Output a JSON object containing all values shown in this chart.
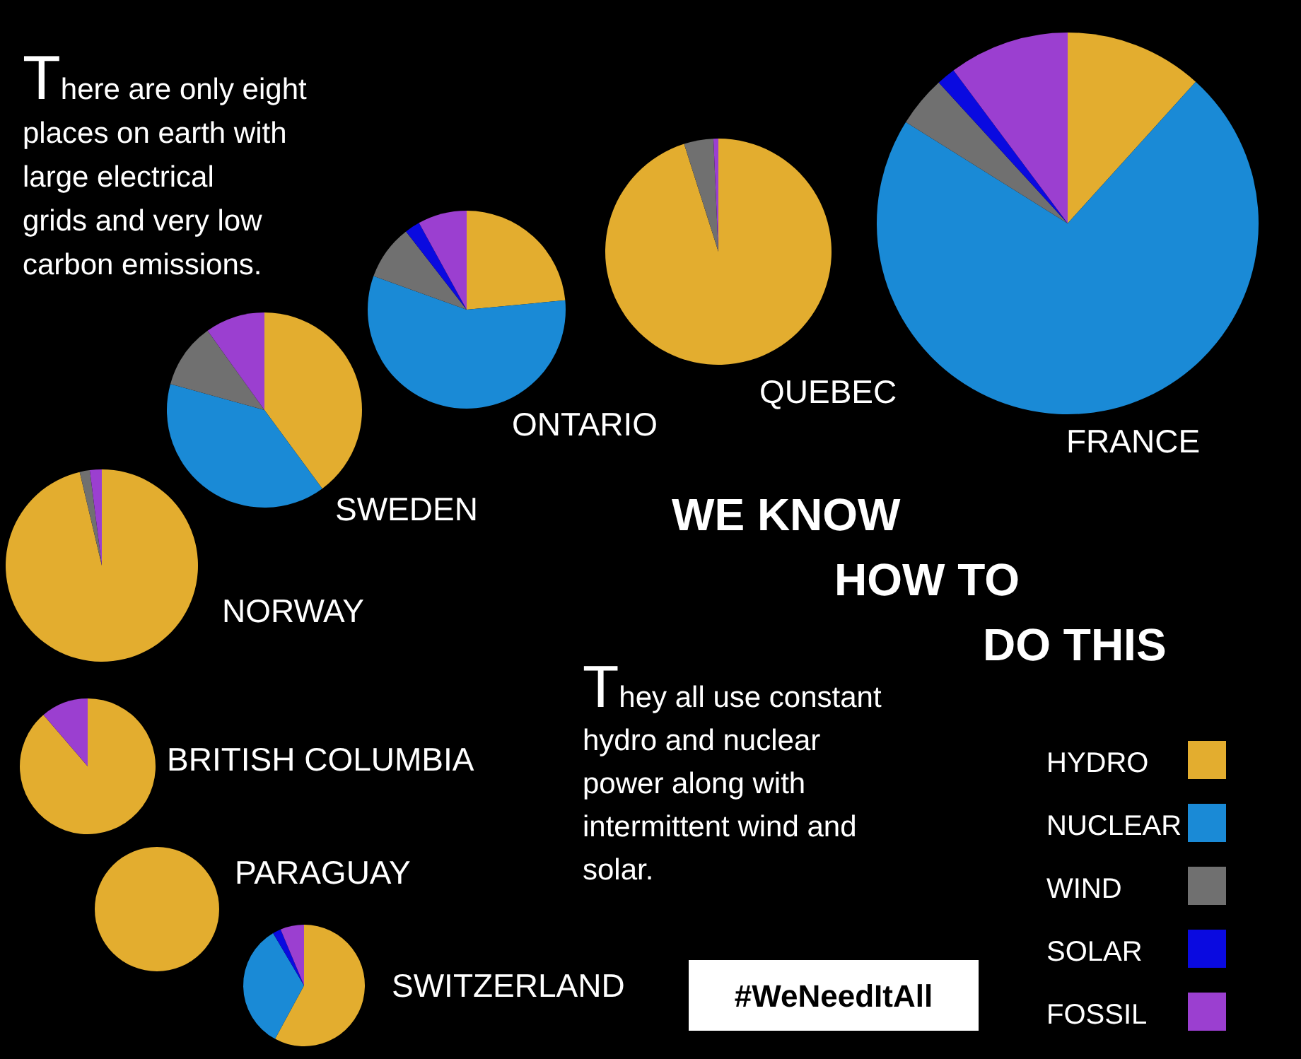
{
  "chart_data": [
    {
      "type": "pie",
      "title": "FRANCE",
      "categories": [
        "HYDRO",
        "NUCLEAR",
        "WIND",
        "SOLAR",
        "FOSSIL"
      ],
      "values": [
        11.7,
        72.2,
        4.3,
        1.6,
        10.2
      ],
      "colors": [
        "#e3ad2f",
        "#1a8ad6",
        "#707070",
        "#0a0ae0",
        "#9b3fd0"
      ],
      "legend": "bottom right"
    },
    {
      "type": "pie",
      "title": "QUEBEC",
      "values": [
        95.1,
        0,
        4.2,
        0,
        0.7
      ],
      "colors": [
        "#e3ad2f",
        "#1a8ad6",
        "#707070",
        "#0a0ae0",
        "#9b3fd0"
      ]
    },
    {
      "type": "pie",
      "title": "ONTARIO",
      "values": [
        23.5,
        57,
        9,
        2.5,
        8
      ],
      "colors": [
        "#e3ad2f",
        "#1a8ad6",
        "#707070",
        "#0a0ae0",
        "#9b3fd0"
      ]
    },
    {
      "type": "pie",
      "title": "SWEDEN",
      "values": [
        39.9,
        39.4,
        10.8,
        0,
        9.9
      ],
      "colors": [
        "#e3ad2f",
        "#1a8ad6",
        "#707070",
        "#0a0ae0",
        "#9b3fd0"
      ]
    },
    {
      "type": "pie",
      "title": "NORWAY",
      "values": [
        96.3,
        0,
        1.7,
        0,
        2
      ],
      "colors": [
        "#e3ad2f",
        "#1a8ad6",
        "#707070",
        "#0a0ae0",
        "#9b3fd0"
      ]
    },
    {
      "type": "pie",
      "title": "BRITISH COLUMBIA",
      "values": [
        88.7,
        0,
        0,
        0,
        11.3
      ],
      "colors": [
        "#e3ad2f",
        "#1a8ad6",
        "#707070",
        "#0a0ae0",
        "#9b3fd0"
      ]
    },
    {
      "type": "pie",
      "title": "PARAGUAY",
      "values": [
        100,
        0,
        0,
        0,
        0
      ],
      "colors": [
        "#e3ad2f",
        "#1a8ad6",
        "#707070",
        "#0a0ae0",
        "#9b3fd0"
      ]
    },
    {
      "type": "pie",
      "title": "SWITZERLAND",
      "values": [
        57.9,
        33.6,
        0,
        2.2,
        6.3
      ],
      "colors": [
        "#e3ad2f",
        "#1a8ad6",
        "#707070",
        "#0a0ae0",
        "#9b3fd0"
      ]
    },
    {
      "type": "other",
      "annotations": [
        "There are only eight places on earth with large electrical grids and very low carbon emissions.",
        "WE KNOW HOW TO DO THIS",
        "They all use constant hydro and nuclear power along with intermittent wind and solar.",
        "#WeNeedItAll"
      ]
    }
  ]
}
